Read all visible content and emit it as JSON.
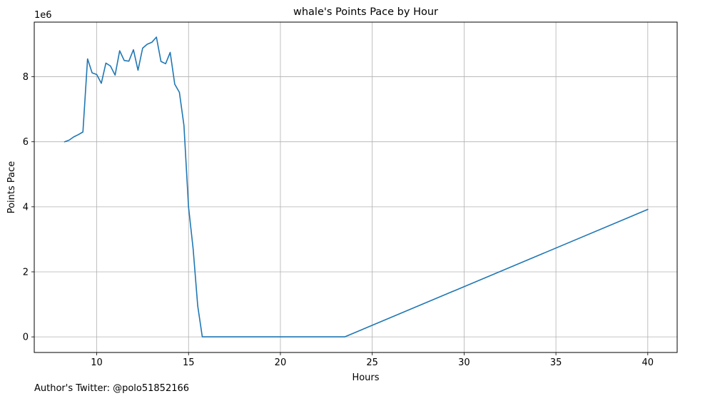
{
  "chart_data": {
    "type": "line",
    "title": "whale's Points Pace by Hour",
    "xlabel": "Hours",
    "ylabel": "Points Pace",
    "y_multiplier_label": "1e6",
    "xlim": [
      6.6,
      41.6
    ],
    "ylim": [
      -0.48,
      9.68
    ],
    "x_ticks": [
      10,
      15,
      20,
      25,
      30,
      35,
      40
    ],
    "x_tick_labels": [
      "10",
      "15",
      "20",
      "25",
      "30",
      "35",
      "40"
    ],
    "y_ticks": [
      0,
      2,
      4,
      6,
      8
    ],
    "y_tick_labels": [
      "0",
      "2",
      "4",
      "6",
      "8"
    ],
    "grid": true,
    "line_color": "#1f77b4",
    "series": [
      {
        "x": [
          8.25,
          8.5,
          8.75,
          9.0,
          9.25,
          9.5,
          9.75,
          10.0,
          10.25,
          10.5,
          10.75,
          11.0,
          11.25,
          11.5,
          11.75,
          12.0,
          12.25,
          12.5,
          12.75,
          13.0,
          13.25,
          13.5,
          13.75,
          14.0,
          14.25,
          14.5,
          14.75,
          15.0,
          15.25,
          15.5,
          15.75,
          23.5,
          40.0
        ],
        "y": [
          6.0,
          6.05,
          6.15,
          6.22,
          6.3,
          8.55,
          8.12,
          8.07,
          7.8,
          8.42,
          8.33,
          8.05,
          8.8,
          8.5,
          8.48,
          8.83,
          8.2,
          8.88,
          9.0,
          9.06,
          9.22,
          8.47,
          8.4,
          8.75,
          7.77,
          7.52,
          6.5,
          4.0,
          2.7,
          0.95,
          0.0,
          0.0,
          3.92
        ]
      }
    ]
  },
  "footer": {
    "text": "Author's Twitter: @polo51852166"
  }
}
